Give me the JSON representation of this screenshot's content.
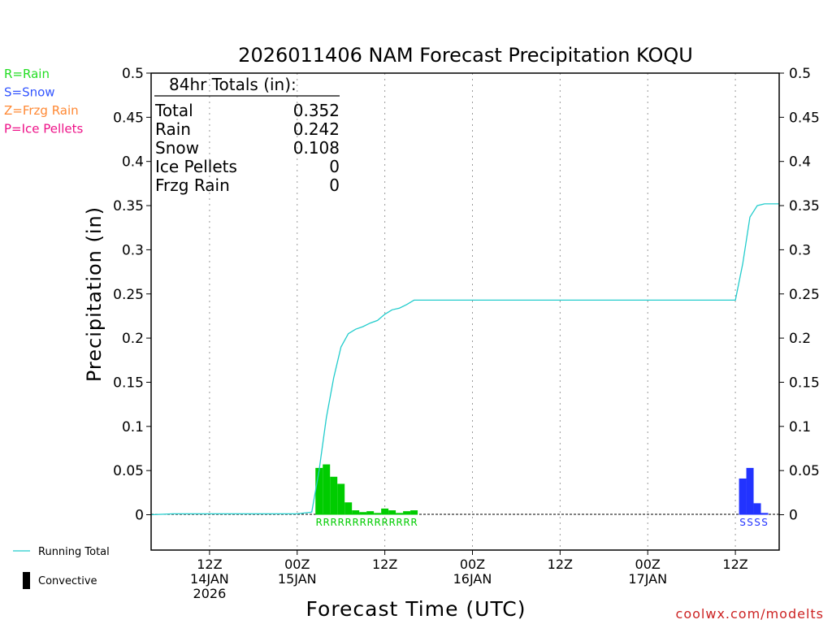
{
  "chart_data": {
    "type": "bar",
    "title": "2026011406 NAM Forecast Precipitation KOQU",
    "xlabel": "Forecast Time (UTC)",
    "ylabel": "Precipitation (in)",
    "ylim": [
      -0.04,
      0.5
    ],
    "y_ticks": [
      0,
      0.05,
      0.1,
      0.15,
      0.2,
      0.25,
      0.3,
      0.35,
      0.4,
      0.45,
      0.5
    ],
    "y_tick_labels": [
      "0",
      "0.05",
      "0.1",
      "0.15",
      "0.2",
      "0.25",
      "0.3",
      "0.35",
      "0.4",
      "0.45",
      "0.5"
    ],
    "x_range_hours": [
      -2,
      84
    ],
    "x_ticks": [
      {
        "hour": 6,
        "lines": [
          "12Z",
          "14JAN",
          "2026"
        ]
      },
      {
        "hour": 18,
        "lines": [
          "00Z",
          "15JAN"
        ]
      },
      {
        "hour": 30,
        "lines": [
          "12Z"
        ]
      },
      {
        "hour": 42,
        "lines": [
          "00Z",
          "16JAN"
        ]
      },
      {
        "hour": 54,
        "lines": [
          "12Z"
        ]
      },
      {
        "hour": 66,
        "lines": [
          "00Z",
          "17JAN"
        ]
      },
      {
        "hour": 78,
        "lines": [
          "12Z"
        ]
      }
    ],
    "totals": {
      "header": "84hr Totals (in):",
      "rows": [
        {
          "label": "Total",
          "value": "0.352"
        },
        {
          "label": "Rain",
          "value": "0.242"
        },
        {
          "label": "Snow",
          "value": "0.108"
        },
        {
          "label": "Ice Pellets",
          "value": "0"
        },
        {
          "label": "Frzg Rain",
          "value": "0"
        }
      ]
    },
    "type_legend": [
      {
        "label": "R=Rain",
        "color": "#22dd22"
      },
      {
        "label": "S=Snow",
        "color": "#3355ff"
      },
      {
        "label": "Z=Frzg Rain",
        "color": "#ff8833"
      },
      {
        "label": "P=Ice Pellets",
        "color": "#ee1188"
      }
    ],
    "bottom_legend": [
      {
        "label": "Running Total",
        "kind": "line",
        "color": "#22cccc"
      },
      {
        "label": "Convective",
        "kind": "bar",
        "color": "#000000"
      }
    ],
    "series": [
      {
        "name": "Rain",
        "color": "#00cc00",
        "marker_letter": "R",
        "bars": [
          {
            "hour": 21,
            "value": 0.053
          },
          {
            "hour": 22,
            "value": 0.057
          },
          {
            "hour": 23,
            "value": 0.043
          },
          {
            "hour": 24,
            "value": 0.035
          },
          {
            "hour": 25,
            "value": 0.014
          },
          {
            "hour": 26,
            "value": 0.005
          },
          {
            "hour": 27,
            "value": 0.003
          },
          {
            "hour": 28,
            "value": 0.004
          },
          {
            "hour": 29,
            "value": 0.002
          },
          {
            "hour": 30,
            "value": 0.007
          },
          {
            "hour": 31,
            "value": 0.005
          },
          {
            "hour": 32,
            "value": 0.002
          },
          {
            "hour": 33,
            "value": 0.004
          },
          {
            "hour": 34,
            "value": 0.005
          }
        ]
      },
      {
        "name": "Snow",
        "color": "#2233ff",
        "marker_letter": "S",
        "bars": [
          {
            "hour": 79,
            "value": 0.041
          },
          {
            "hour": 80,
            "value": 0.053
          },
          {
            "hour": 81,
            "value": 0.013
          },
          {
            "hour": 82,
            "value": 0.002
          }
        ]
      }
    ],
    "running_total": {
      "name": "Running Total",
      "color": "#22cccc",
      "points": [
        [
          -2,
          0
        ],
        [
          1,
          0.001
        ],
        [
          18,
          0.001
        ],
        [
          20,
          0.003
        ],
        [
          21,
          0.05
        ],
        [
          22,
          0.11
        ],
        [
          23,
          0.155
        ],
        [
          24,
          0.19
        ],
        [
          25,
          0.205
        ],
        [
          26,
          0.21
        ],
        [
          27,
          0.213
        ],
        [
          28,
          0.217
        ],
        [
          29,
          0.22
        ],
        [
          30,
          0.227
        ],
        [
          31,
          0.232
        ],
        [
          32,
          0.234
        ],
        [
          33,
          0.238
        ],
        [
          34,
          0.243
        ],
        [
          78,
          0.243
        ],
        [
          79,
          0.284
        ],
        [
          80,
          0.337
        ],
        [
          81,
          0.35
        ],
        [
          82,
          0.352
        ],
        [
          84,
          0.352
        ]
      ]
    },
    "credit": "coolwx.com/modelts"
  }
}
